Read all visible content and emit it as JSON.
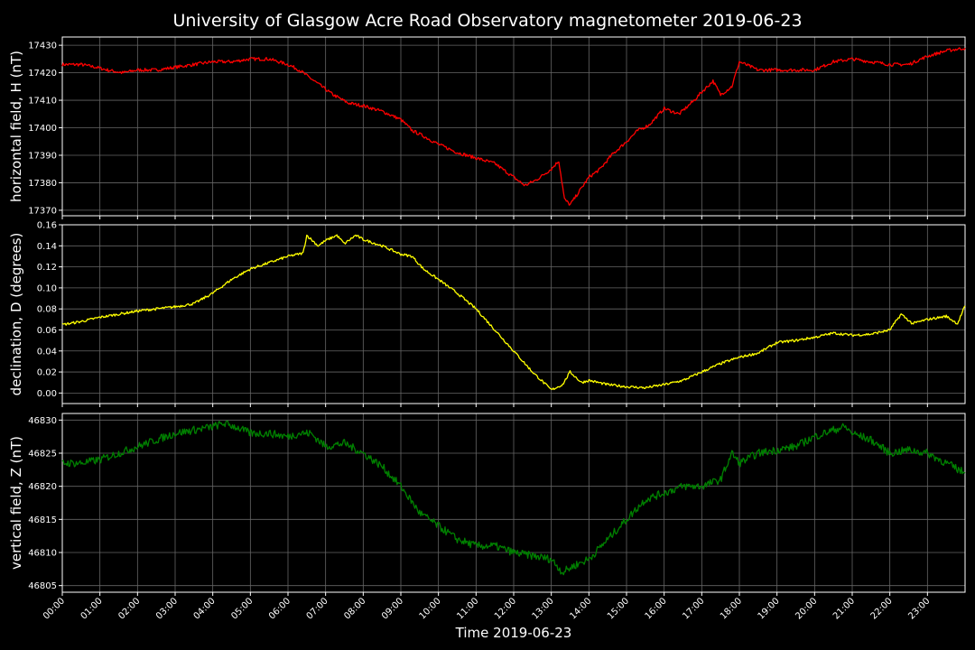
{
  "chart_data": {
    "type": "line",
    "title": "University of Glasgow Acre Road Observatory magnetometer 2019-06-23",
    "xlabel": "Time 2019-06-23",
    "x_tick_labels": [
      "00:00",
      "01:00",
      "02:00",
      "03:00",
      "04:00",
      "05:00",
      "06:00",
      "07:00",
      "08:00",
      "09:00",
      "10:00",
      "11:00",
      "12:00",
      "13:00",
      "14:00",
      "15:00",
      "16:00",
      "17:00",
      "18:00",
      "19:00",
      "20:00",
      "21:00",
      "22:00",
      "23:00"
    ],
    "x_unit": "hour",
    "xlim": [
      0,
      24
    ],
    "grid": true,
    "panels": [
      {
        "ylabel": "horizontal field, H (nT)",
        "color": "#ff0000",
        "ylim": [
          17368,
          17433
        ],
        "yticks": [
          "17370",
          "17380",
          "17390",
          "17400",
          "17410",
          "17420",
          "17430"
        ],
        "ytick_values": [
          17370,
          17380,
          17390,
          17400,
          17410,
          17420,
          17430
        ],
        "noise": 0.6,
        "x": [
          0,
          0.5,
          0.9,
          1.2,
          1.6,
          2,
          2.5,
          3,
          3.5,
          4,
          4.5,
          5,
          5.5,
          6,
          6.3,
          6.8,
          7.2,
          7.6,
          8,
          8.5,
          9,
          9.3,
          9.6,
          10,
          10.5,
          11,
          11.5,
          12,
          12.3,
          12.6,
          13,
          13.2,
          13.35,
          13.5,
          13.8,
          14,
          14.3,
          14.6,
          15,
          15.3,
          15.6,
          16,
          16.4,
          16.8,
          17,
          17.3,
          17.5,
          17.8,
          18,
          18.5,
          19,
          19.5,
          20,
          20.5,
          21,
          21.5,
          22,
          22.5,
          23,
          23.5,
          24
        ],
        "y": [
          17423,
          17423,
          17422,
          17421,
          17420,
          17421,
          17421,
          17422,
          17423,
          17424,
          17424,
          17425,
          17425,
          17423,
          17421,
          17416,
          17412,
          17409,
          17408,
          17406,
          17403,
          17399,
          17397,
          17394,
          17391,
          17389,
          17387,
          17382,
          17379,
          17381,
          17385,
          17388,
          17374,
          17372,
          17378,
          17382,
          17385,
          17390,
          17395,
          17399,
          17401,
          17407,
          17405,
          17410,
          17413,
          17417,
          17412,
          17415,
          17424,
          17421,
          17421,
          17421,
          17421,
          17424,
          17425,
          17424,
          17423,
          17423,
          17426,
          17428,
          17429
        ]
      },
      {
        "ylabel": "declination, D (degrees)",
        "color": "#ffff00",
        "ylim": [
          -0.01,
          0.16
        ],
        "yticks": [
          "0.00",
          "0.02",
          "0.04",
          "0.06",
          "0.08",
          "0.10",
          "0.12",
          "0.14",
          "0.16"
        ],
        "ytick_values": [
          0,
          0.02,
          0.04,
          0.06,
          0.08,
          0.1,
          0.12,
          0.14,
          0.16
        ],
        "noise": 0.0012,
        "x": [
          0,
          0.5,
          1,
          1.5,
          2,
          2.5,
          3,
          3.5,
          4,
          4.5,
          5,
          5.5,
          6,
          6.4,
          6.5,
          6.8,
          7,
          7.3,
          7.5,
          7.8,
          8,
          8.5,
          9,
          9.3,
          9.6,
          10,
          10.5,
          11,
          11.5,
          12,
          12.5,
          13,
          13.3,
          13.5,
          13.8,
          14,
          14.5,
          15,
          15.5,
          16,
          16.5,
          17,
          17.5,
          18,
          18.5,
          19,
          19.5,
          20,
          20.5,
          21,
          21.5,
          22,
          22.3,
          22.6,
          23,
          23.5,
          23.8,
          24
        ],
        "y": [
          0.065,
          0.068,
          0.072,
          0.075,
          0.078,
          0.08,
          0.082,
          0.085,
          0.095,
          0.108,
          0.118,
          0.124,
          0.13,
          0.133,
          0.15,
          0.14,
          0.145,
          0.15,
          0.142,
          0.15,
          0.146,
          0.14,
          0.132,
          0.13,
          0.118,
          0.108,
          0.095,
          0.08,
          0.06,
          0.04,
          0.02,
          0.003,
          0.008,
          0.02,
          0.01,
          0.012,
          0.008,
          0.006,
          0.005,
          0.008,
          0.012,
          0.02,
          0.028,
          0.034,
          0.038,
          0.048,
          0.05,
          0.053,
          0.057,
          0.055,
          0.056,
          0.06,
          0.075,
          0.066,
          0.07,
          0.073,
          0.066,
          0.083
        ]
      },
      {
        "ylabel": "vertical field, Z (nT)",
        "color": "#008000",
        "ylim": [
          46804,
          46831
        ],
        "yticks": [
          "46805",
          "46810",
          "46815",
          "46820",
          "46825",
          "46830"
        ],
        "ytick_values": [
          46805,
          46810,
          46815,
          46820,
          46825,
          46830
        ],
        "noise": 0.6,
        "x": [
          0,
          0.5,
          1,
          1.5,
          2,
          2.5,
          3,
          3.5,
          4,
          4.3,
          4.6,
          5,
          5.5,
          6,
          6.3,
          6.6,
          7,
          7.5,
          8,
          8.5,
          9,
          9.5,
          10,
          10.5,
          11,
          11.5,
          12,
          12.5,
          13,
          13.3,
          13.6,
          14,
          14.5,
          15,
          15.5,
          16,
          16.5,
          17,
          17.5,
          17.8,
          18,
          18.5,
          19,
          19.5,
          20,
          20.5,
          20.8,
          21,
          21.5,
          22,
          22.5,
          23,
          23.5,
          24
        ],
        "y": [
          46823.5,
          46823.5,
          46824,
          46825,
          46826,
          46827,
          46828,
          46828.5,
          46829,
          46829.5,
          46829,
          46828,
          46828,
          46827.5,
          46828,
          46828,
          46826,
          46826.5,
          46825,
          46823,
          46820,
          46816,
          46814,
          46812,
          46811,
          46811,
          46810,
          46809.5,
          46809,
          46807,
          46808,
          46809,
          46812,
          46815,
          46818,
          46819,
          46820,
          46820,
          46821,
          46825,
          46823.5,
          46825,
          46825.5,
          46826,
          46827.5,
          46828.5,
          46829,
          46828,
          46827,
          46825,
          46825.5,
          46825,
          46823.5,
          46822
        ]
      }
    ]
  }
}
